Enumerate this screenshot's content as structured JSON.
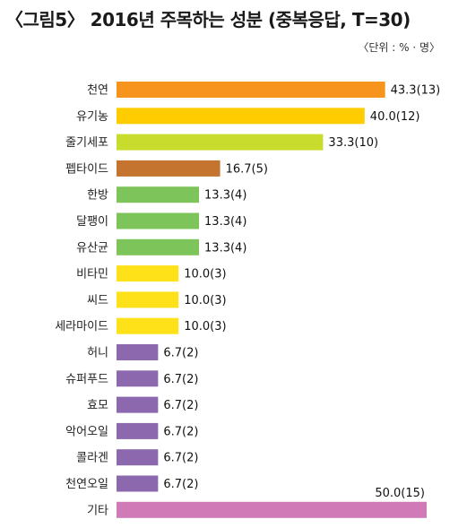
{
  "chart_data": {
    "type": "bar",
    "orientation": "horizontal",
    "title": "〈그림5〉 2016년 주목하는 성분 (중복응답, T=30)",
    "unit_note": "〈단위 : % · 명〉",
    "categories": [
      "천연",
      "유기농",
      "줄기세포",
      "펩타이드",
      "한방",
      "달팽이",
      "유산균",
      "비타민",
      "씨드",
      "세라마이드",
      "허니",
      "슈퍼푸드",
      "효모",
      "악어오일",
      "콜라겐",
      "천연오일",
      "기타"
    ],
    "values": [
      43.3,
      40.0,
      33.3,
      16.7,
      13.3,
      13.3,
      13.3,
      10.0,
      10.0,
      10.0,
      6.7,
      6.7,
      6.7,
      6.7,
      6.7,
      6.7,
      50.0
    ],
    "counts": [
      13,
      12,
      10,
      5,
      4,
      4,
      4,
      3,
      3,
      3,
      2,
      2,
      2,
      2,
      2,
      2,
      15
    ],
    "value_labels": [
      "43.3(13)",
      "40.0(12)",
      "33.3(10)",
      "16.7(5)",
      "13.3(4)",
      "13.3(4)",
      "13.3(4)",
      "10.0(3)",
      "10.0(3)",
      "10.0(3)",
      "6.7(2)",
      "6.7(2)",
      "6.7(2)",
      "6.7(2)",
      "6.7(2)",
      "6.7(2)",
      "50.0(15)"
    ],
    "colors": [
      "#f7941d",
      "#ffcc00",
      "#c7dc2c",
      "#c4742f",
      "#7dc45a",
      "#7dc45a",
      "#7dc45a",
      "#ffe11a",
      "#ffe11a",
      "#ffe11a",
      "#8c69ae",
      "#8c69ae",
      "#8c69ae",
      "#8c69ae",
      "#8c69ae",
      "#8c69ae",
      "#d07ab8"
    ],
    "xlim": [
      0,
      50
    ],
    "grid": false,
    "legend": "none"
  }
}
